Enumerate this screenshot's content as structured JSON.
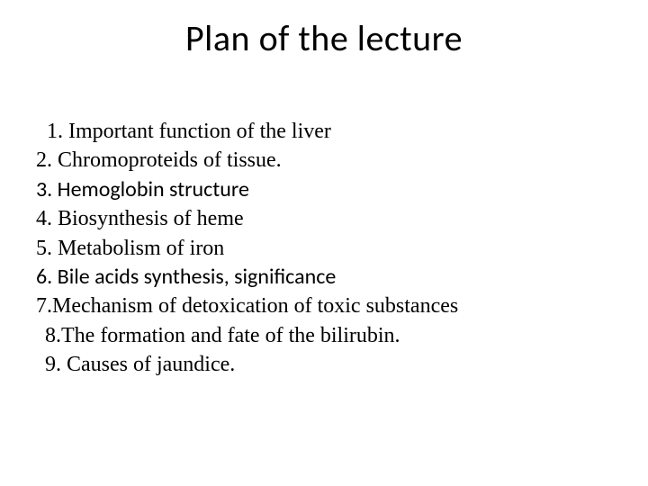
{
  "title": "Plan of  the  lecture",
  "lines": {
    "l1": "1. Important function of the liver",
    "l2": "2. Chromoproteids of tissue.",
    "l3": "3. Hemoglobin  structure",
    "l4": "4. Biosynthesis of heme",
    "l5": "5. Metabolism of iron",
    "l6": "6. Bile acids  synthesis, significance",
    "l7": "7.Mechanism of detoxication  of  toxic  substances",
    "l8": "8.The formation and fate of  the bilirubin.",
    "l9": "9. Causes of jaundice."
  },
  "style": {
    "background_color": "#ffffff",
    "text_color": "#000000",
    "title_fontsize": 40,
    "title_font_family": "Calibri",
    "body_fontsize": 24,
    "body_font_family_primary": "Times New Roman",
    "body_font_family_alt": "Calibri",
    "slide_width": 720,
    "slide_height": 540,
    "line_height": 1.35
  }
}
